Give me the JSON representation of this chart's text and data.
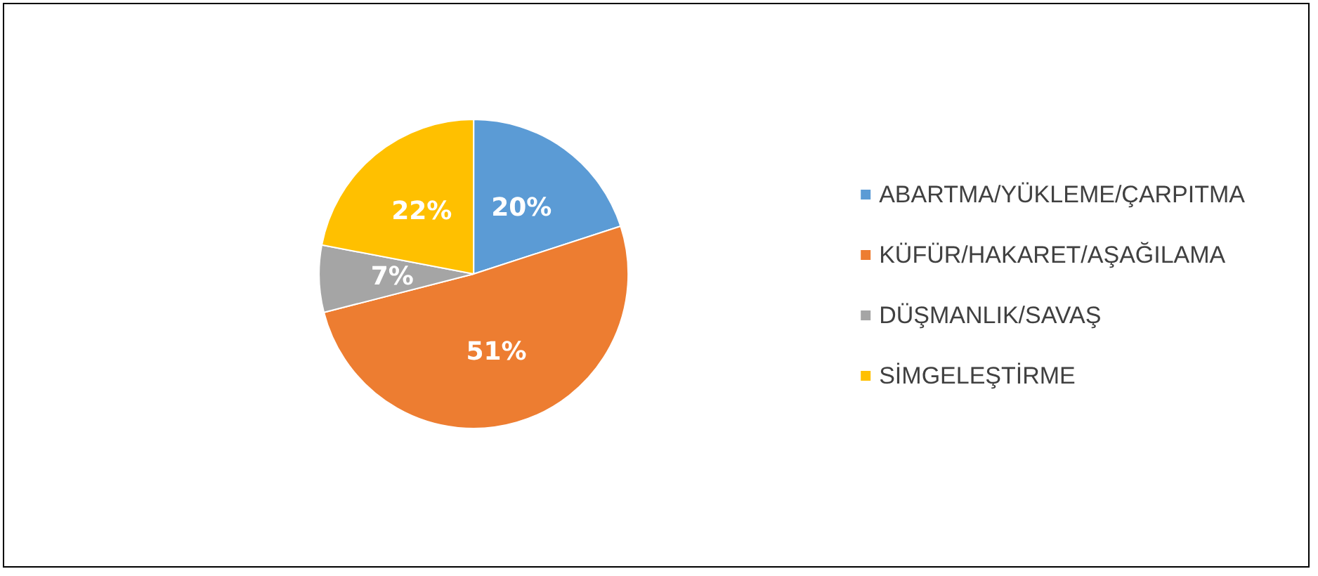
{
  "chart_data": {
    "type": "pie",
    "categories": [
      "ABARTMA/YÜKLEME/ÇARPITMA",
      "KÜFÜR/HAKARET/AŞAĞILAMA",
      "DÜŞMANLIK/SAVAŞ",
      "SİMGELEŞTİRME"
    ],
    "values": [
      20,
      51,
      7,
      22
    ],
    "colors": [
      "#5b9bd5",
      "#ed7d31",
      "#a5a5a5",
      "#ffc000"
    ],
    "value_labels": [
      "20%",
      "51%",
      "7%",
      "22%"
    ],
    "legend": "right"
  }
}
